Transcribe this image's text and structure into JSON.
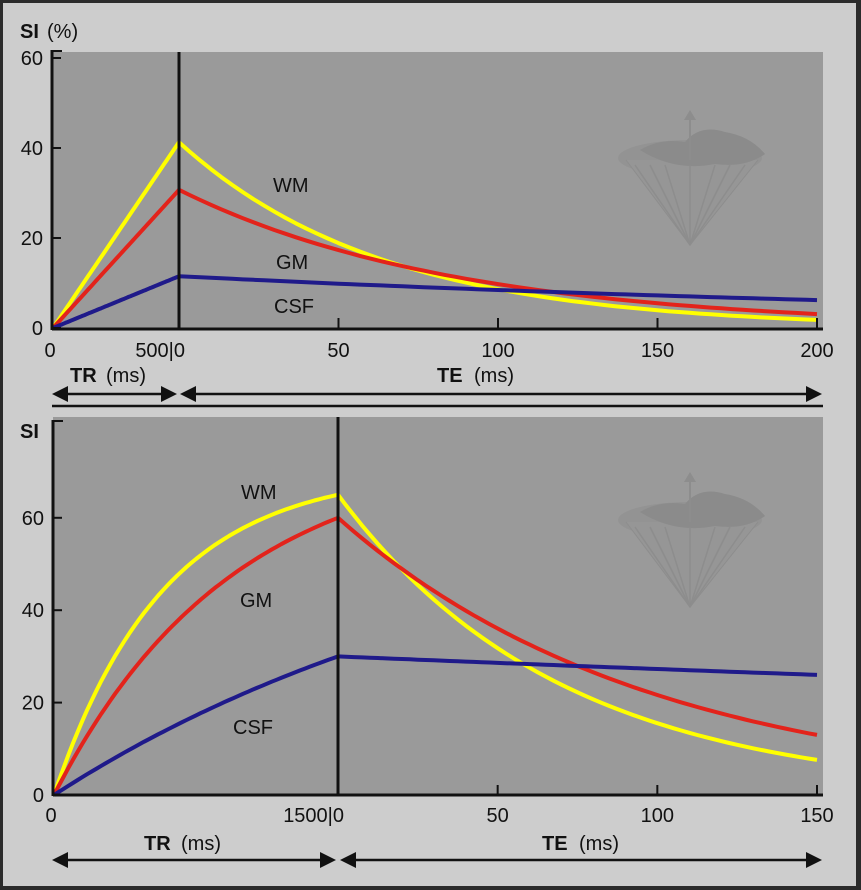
{
  "chart_data": [
    {
      "type": "line",
      "title": "",
      "ylabel_bold": "SI",
      "ylabel_unit": "(%)",
      "ylim": [
        0,
        60
      ],
      "yticks": [
        0,
        20,
        40,
        60
      ],
      "tr_axis": {
        "label_bold": "TR",
        "label_unit": "(ms)",
        "range": [
          0,
          500
        ],
        "tick_labels": [
          "0",
          "500|0"
        ]
      },
      "te_axis": {
        "label_bold": "TE",
        "label_unit": "(ms)",
        "range": [
          0,
          200
        ],
        "ticks": [
          50,
          100,
          150,
          200
        ],
        "tick_labels": [
          "50",
          "100",
          "150",
          "200"
        ]
      },
      "grid": false,
      "series": [
        {
          "name": "WM",
          "color": "#ffff00",
          "tr_end_value": 41.3,
          "te_end_value": 1.8,
          "tr_shape": "linear",
          "label_pos": [
            80,
            32
          ]
        },
        {
          "name": "GM",
          "color": "#e3231b",
          "tr_end_value": 30.7,
          "te_end_value": 3.1,
          "tr_shape": "linear",
          "label_pos": [
            80,
            14
          ]
        },
        {
          "name": "CSF",
          "color": "#1f1a8a",
          "tr_end_value": 11.5,
          "te_end_value": 6.2,
          "tr_shape": "linear",
          "label_pos": [
            80,
            5
          ]
        }
      ]
    },
    {
      "type": "line",
      "title": "",
      "ylabel_bold": "SI",
      "ylabel_unit": "",
      "ylim": [
        0,
        80
      ],
      "yticks": [
        0,
        20,
        40,
        60
      ],
      "tr_axis": {
        "label_bold": "TR",
        "label_unit": "(ms)",
        "range": [
          0,
          1500
        ],
        "tick_labels": [
          "0",
          "1500|0"
        ]
      },
      "te_axis": {
        "label_bold": "TE",
        "label_unit": "(ms)",
        "range": [
          0,
          150
        ],
        "ticks": [
          50,
          100,
          150
        ],
        "tick_labels": [
          "50",
          "100",
          "150"
        ]
      },
      "grid": false,
      "series": [
        {
          "name": "WM",
          "color": "#ffff00",
          "tr_end_value": 65,
          "te_end_value": 7.6,
          "tr_shape": "saturating-fast",
          "label_pos": [
            880,
            63
          ]
        },
        {
          "name": "GM",
          "color": "#e3231b",
          "tr_end_value": 60,
          "te_end_value": 13,
          "tr_shape": "saturating",
          "label_pos": [
            880,
            40
          ]
        },
        {
          "name": "CSF",
          "color": "#1f1a8a",
          "tr_end_value": 30,
          "te_end_value": 26,
          "tr_shape": "near-linear",
          "label_pos": [
            880,
            14
          ]
        }
      ]
    }
  ],
  "colors": {
    "plot_bg": "#9a9a9a",
    "frame_bg": "#cdcdcd",
    "axis": "#111111",
    "watermark": "#8c8c8c"
  },
  "watermark_icon": "earth-cone-logo-icon"
}
